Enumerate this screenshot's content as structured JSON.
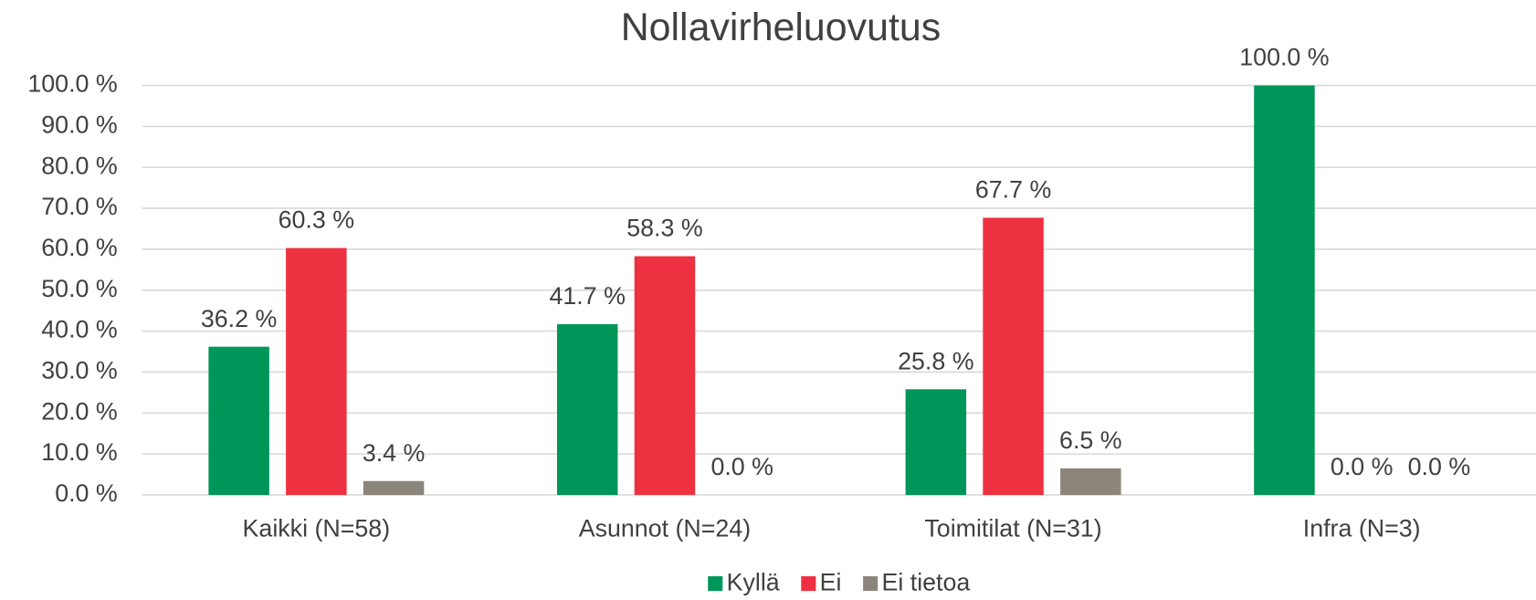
{
  "chart_data": {
    "type": "bar",
    "title": "Nollavirheluovutus",
    "categories": [
      "Kaikki (N=58)",
      "Asunnot (N=24)",
      "Toimitilat (N=31)",
      "Infra (N=3)"
    ],
    "series": [
      {
        "name": "Kyllä",
        "color": "#00965a",
        "values": [
          36.2,
          41.7,
          25.8,
          100.0
        ],
        "value_labels": [
          "36.2 %",
          "41.7 %",
          "25.8 %",
          "100.0 %"
        ]
      },
      {
        "name": "Ei",
        "color": "#ee3140",
        "values": [
          60.3,
          58.3,
          67.7,
          0.0
        ],
        "value_labels": [
          "60.3 %",
          "58.3 %",
          "67.7 %",
          "0.0 %"
        ]
      },
      {
        "name": "Ei tietoa",
        "color": "#8c857b",
        "values": [
          3.4,
          0.0,
          6.5,
          0.0
        ],
        "value_labels": [
          "3.4 %",
          "0.0 %",
          "6.5 %",
          "0.0 %"
        ]
      }
    ],
    "ylim": [
      0,
      100
    ],
    "yticks": [
      {
        "value": 0,
        "label": "0.0 %"
      },
      {
        "value": 10,
        "label": "10.0 %"
      },
      {
        "value": 20,
        "label": "20.0 %"
      },
      {
        "value": 30,
        "label": "30.0 %"
      },
      {
        "value": 40,
        "label": "40.0 %"
      },
      {
        "value": 50,
        "label": "50.0 %"
      },
      {
        "value": 60,
        "label": "60.0 %"
      },
      {
        "value": 70,
        "label": "70.0 %"
      },
      {
        "value": 80,
        "label": "80.0 %"
      },
      {
        "value": 90,
        "label": "90.0 %"
      },
      {
        "value": 100,
        "label": "100.0 %"
      }
    ],
    "grid": true,
    "legend": "bottom"
  }
}
